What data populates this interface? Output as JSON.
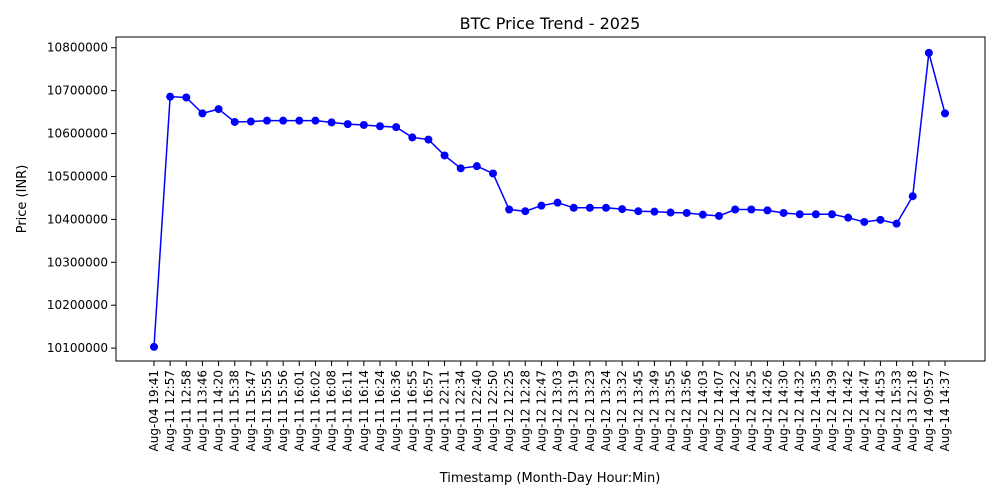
{
  "chart_data": {
    "type": "line",
    "title": "BTC Price Trend - 2025",
    "xlabel": "Timestamp (Month-Day Hour:Min)",
    "ylabel": "Price (INR)",
    "ylim": [
      10070000,
      10825000
    ],
    "yticks": [
      10100000,
      10200000,
      10300000,
      10400000,
      10500000,
      10600000,
      10700000,
      10800000
    ],
    "grid": false,
    "line_color": "#0000ff",
    "marker": "circle",
    "x": [
      "Aug-04 19:41",
      "Aug-11 12:57",
      "Aug-11 12:58",
      "Aug-11 13:46",
      "Aug-11 14:20",
      "Aug-11 15:38",
      "Aug-11 15:47",
      "Aug-11 15:55",
      "Aug-11 15:56",
      "Aug-11 16:01",
      "Aug-11 16:02",
      "Aug-11 16:08",
      "Aug-11 16:11",
      "Aug-11 16:14",
      "Aug-11 16:24",
      "Aug-11 16:36",
      "Aug-11 16:55",
      "Aug-11 16:57",
      "Aug-11 22:11",
      "Aug-11 22:34",
      "Aug-11 22:40",
      "Aug-11 22:50",
      "Aug-12 12:25",
      "Aug-12 12:28",
      "Aug-12 12:47",
      "Aug-12 13:03",
      "Aug-12 13:19",
      "Aug-12 13:23",
      "Aug-12 13:24",
      "Aug-12 13:32",
      "Aug-12 13:45",
      "Aug-12 13:49",
      "Aug-12 13:55",
      "Aug-12 13:56",
      "Aug-12 14:03",
      "Aug-12 14:07",
      "Aug-12 14:22",
      "Aug-12 14:25",
      "Aug-12 14:26",
      "Aug-12 14:30",
      "Aug-12 14:32",
      "Aug-12 14:35",
      "Aug-12 14:39",
      "Aug-12 14:42",
      "Aug-12 14:47",
      "Aug-12 14:53",
      "Aug-12 15:33",
      "Aug-13 12:18",
      "Aug-14 09:57",
      "Aug-14 14:37"
    ],
    "series": [
      {
        "values": [
          10103000,
          10686000,
          10684000,
          10647000,
          10657000,
          10627000,
          10628000,
          10630000,
          10630000,
          10630000,
          10630000,
          10626000,
          10622000,
          10620000,
          10617000,
          10615000,
          10591000,
          10586000,
          10549000,
          10519000,
          10524000,
          10507000,
          10423000,
          10419000,
          10432000,
          10439000,
          10427000,
          10427000,
          10427000,
          10424000,
          10419000,
          10418000,
          10416000,
          10415000,
          10411000,
          10408000,
          10423000,
          10423000,
          10421000,
          10415000,
          10412000,
          10412000,
          10412000,
          10404000,
          10394000,
          10399000,
          10390000,
          10454000,
          10788000,
          10647000
        ]
      }
    ]
  }
}
